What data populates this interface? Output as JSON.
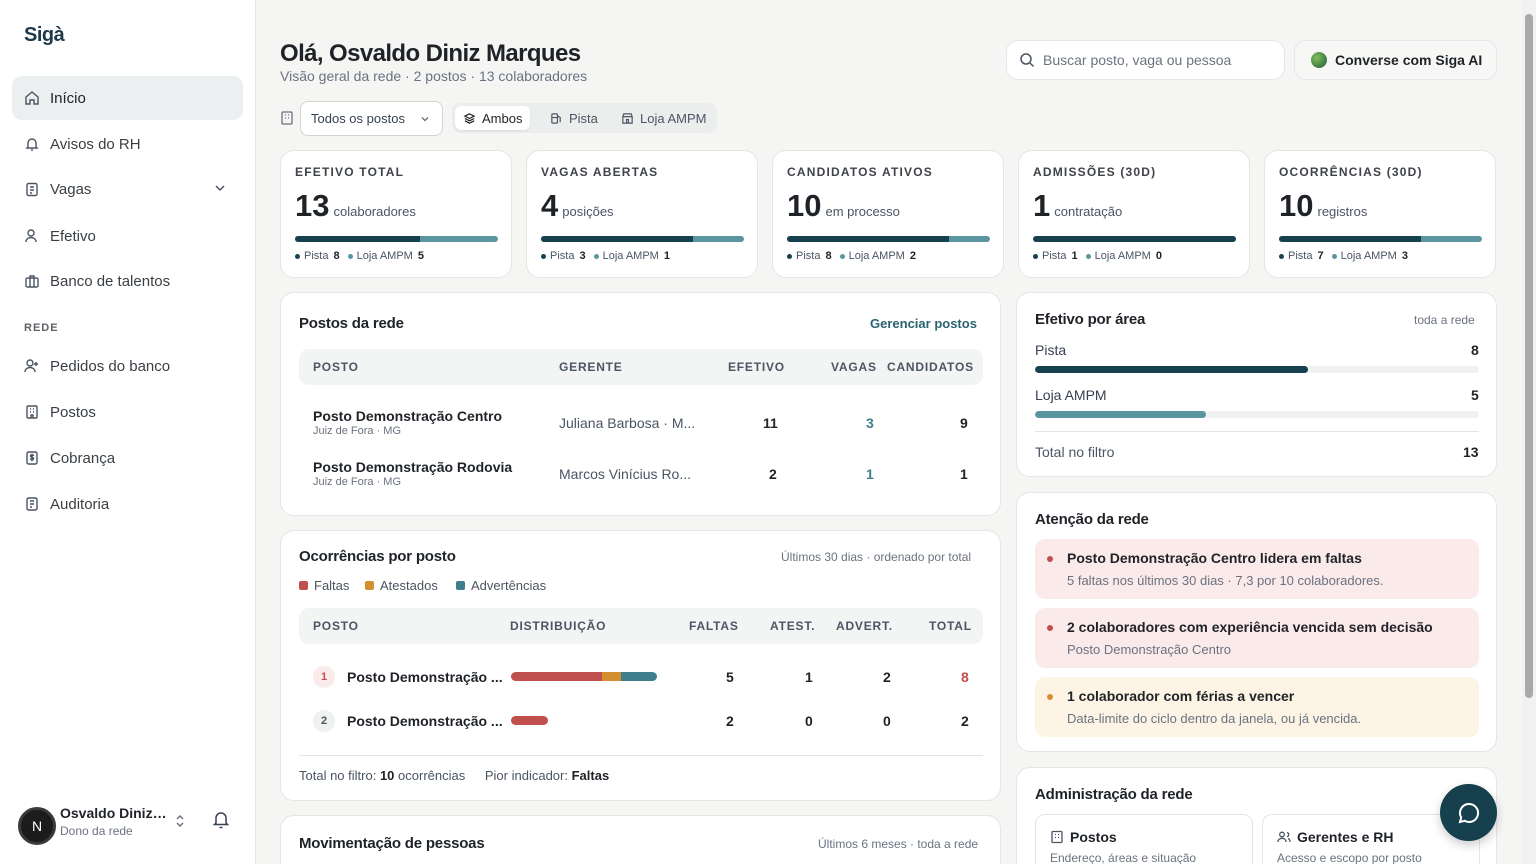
{
  "brand": "Sigà",
  "nav": {
    "items": [
      {
        "label": "Início",
        "icon": "home-icon"
      },
      {
        "label": "Avisos do RH",
        "icon": "bell-icon"
      },
      {
        "label": "Vagas",
        "icon": "clipboard-icon"
      },
      {
        "label": "Efetivo",
        "icon": "users-icon"
      },
      {
        "label": "Banco de talentos",
        "icon": "briefcase-icon"
      }
    ],
    "section_label": "REDE",
    "rede_items": [
      {
        "label": "Pedidos do banco",
        "icon": "user-plus-icon"
      },
      {
        "label": "Postos",
        "icon": "building-icon"
      },
      {
        "label": "Cobrança",
        "icon": "dollar-file-icon"
      },
      {
        "label": "Auditoria",
        "icon": "audit-icon"
      }
    ]
  },
  "user": {
    "initial": "N",
    "name": "Osvaldo Diniz Marques",
    "role": "Dono da rede"
  },
  "header": {
    "greeting": "Olá, Osvaldo Diniz Marques",
    "subtitle": "Visão geral da rede · 2 postos · 13 colaboradores",
    "search_placeholder": "Buscar posto, vaga ou pessoa",
    "ai_button": "Converse com Siga AI"
  },
  "filters": {
    "select_value": "Todos os postos",
    "segments": [
      "Ambos",
      "Pista",
      "Loja AMPM"
    ],
    "active_segment": "Ambos"
  },
  "stats": [
    {
      "label": "EFETIVO TOTAL",
      "value": "13",
      "unit": "colaboradores",
      "a_label": "Pista",
      "a": "8",
      "b_label": "Loja AMPM",
      "b": "5",
      "fraction": 0.615
    },
    {
      "label": "VAGAS ABERTAS",
      "value": "4",
      "unit": "posições",
      "a_label": "Pista",
      "a": "3",
      "b_label": "Loja AMPM",
      "b": "1",
      "fraction": 0.75
    },
    {
      "label": "CANDIDATOS ATIVOS",
      "value": "10",
      "unit": "em processo",
      "a_label": "Pista",
      "a": "8",
      "b_label": "Loja AMPM",
      "b": "2",
      "fraction": 0.8
    },
    {
      "label": "ADMISSÕES (30D)",
      "value": "1",
      "unit": "contratação",
      "a_label": "Pista",
      "a": "1",
      "b_label": "Loja AMPM",
      "b": "0",
      "fraction": 1.0
    },
    {
      "label": "OCORRÊNCIAS (30D)",
      "value": "10",
      "unit": "registros",
      "a_label": "Pista",
      "a": "7",
      "b_label": "Loja AMPM",
      "b": "3",
      "fraction": 0.7
    }
  ],
  "postos": {
    "title": "Postos da rede",
    "link": "Gerenciar postos",
    "columns": [
      "POSTO",
      "GERENTE",
      "EFETIVO",
      "VAGAS",
      "CANDIDATOS"
    ],
    "rows": [
      {
        "name": "Posto Demonstração Centro",
        "city": "Juiz de Fora · MG",
        "manager": "Juliana Barbosa · M...",
        "efetivo": "11",
        "vagas": "3",
        "candidatos": "9"
      },
      {
        "name": "Posto Demonstração Rodovia",
        "city": "Juiz de Fora · MG",
        "manager": "Marcos Vinícius Ro...",
        "efetivo": "2",
        "vagas": "1",
        "candidatos": "1"
      }
    ]
  },
  "ocorrencias": {
    "title": "Ocorrências por posto",
    "right": "Últimos 30 dias · ordenado por total",
    "legend": [
      "Faltas",
      "Atestados",
      "Advertências"
    ],
    "colors": {
      "faltas": "#c0504d",
      "atestados": "#d4902e",
      "advertencias": "#3f7f8c"
    },
    "columns": [
      "POSTO",
      "DISTRIBUIÇÃO",
      "FALTAS",
      "ATEST.",
      "ADVERT.",
      "TOTAL"
    ],
    "rows": [
      {
        "rank": "1",
        "name": "Posto Demonstração ...",
        "faltas": "5",
        "atest": "1",
        "advert": "2",
        "total": "8"
      },
      {
        "rank": "2",
        "name": "Posto Demonstração ...",
        "faltas": "2",
        "atest": "0",
        "advert": "0",
        "total": "2"
      }
    ],
    "footer_label": "Total no filtro:",
    "footer_total": "10",
    "footer_unit": "ocorrências",
    "worst_label": "Pior indicador:",
    "worst_value": "Faltas"
  },
  "movimentacao": {
    "title": "Movimentação de pessoas",
    "right": "Últimos 6 meses · toda a rede"
  },
  "efetivo_area": {
    "title": "Efetivo por área",
    "right": "toda a rede",
    "rows": [
      {
        "label": "Pista",
        "value": "8",
        "fraction": 0.615,
        "color": "#17414f"
      },
      {
        "label": "Loja AMPM",
        "value": "5",
        "fraction": 0.385,
        "color": "#5b95a0"
      }
    ],
    "total_label": "Total no filtro",
    "total": "13"
  },
  "atencao": {
    "title": "Atenção da rede",
    "items": [
      {
        "title": "Posto Demonstração Centro lidera em faltas",
        "sub": "5 faltas nos últimos 30 dias · 7,3 por 10 colaboradores.",
        "bg": "#fbeaea",
        "dot": "#c0504d"
      },
      {
        "title": "2 colaboradores com experiência vencida sem decisão",
        "sub": "Posto Demonstração Centro",
        "bg": "#fbeaea",
        "dot": "#c0504d"
      },
      {
        "title": "1 colaborador com férias a vencer",
        "sub": "Data-limite do ciclo dentro da janela, ou já vencida.",
        "bg": "#fdf4e6",
        "dot": "#d4902e"
      }
    ]
  },
  "admin": {
    "title": "Administração da rede",
    "tiles": [
      {
        "title": "Postos",
        "sub": "Endereço, áreas e situação",
        "icon": "building-icon"
      },
      {
        "title": "Gerentes e RH",
        "sub": "Acesso e escopo por posto",
        "icon": "users-icon"
      }
    ]
  }
}
